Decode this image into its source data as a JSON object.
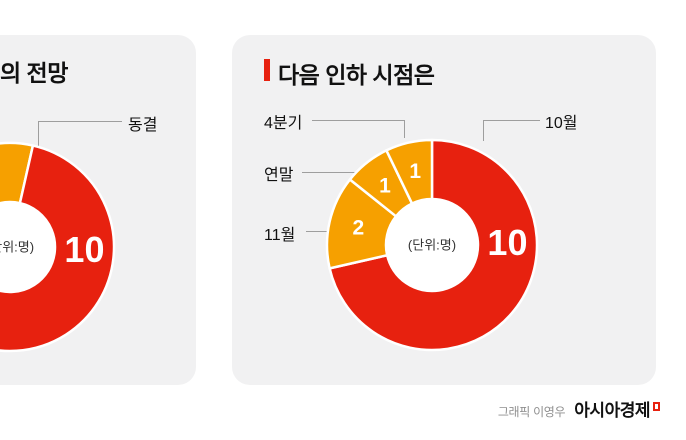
{
  "cards": {
    "left": {
      "title": "의 전망"
    },
    "right": {
      "title": "다음 인하 시점은"
    }
  },
  "footer": {
    "credit": "그래픽 이영우",
    "brand": "아시아경제"
  },
  "colors": {
    "red": "#e7210f",
    "orange": "#f6a000",
    "card_bg": "#f1f1f2",
    "leader_line": "#9e9e9e"
  },
  "chart_data": [
    {
      "id": "left-donut",
      "type": "pie",
      "title_visible": "의 전망",
      "unit_label": "(단위:명)",
      "start_angle": -20,
      "outer_radius": 104,
      "inner_radius": 45,
      "slices": [
        {
          "label": "동결",
          "value": 1,
          "color": "#f6a000",
          "show_value": false
        },
        {
          "label": "",
          "value": 10,
          "color": "#e7210f",
          "show_value": true,
          "label_angle": 92
        }
      ]
    },
    {
      "id": "right-donut",
      "type": "pie",
      "title": "다음 인하 시점은",
      "unit_label": "(단위:명)",
      "start_angle": 0,
      "outer_radius": 105,
      "inner_radius": 46,
      "slices": [
        {
          "label": "10월",
          "value": 10,
          "color": "#e7210f",
          "show_value": true,
          "label_angle": 88
        },
        {
          "label": "11월",
          "value": 2,
          "color": "#f6a000",
          "show_value": true
        },
        {
          "label": "연말",
          "value": 1,
          "color": "#f6a000",
          "show_value": true
        },
        {
          "label": "4분기",
          "value": 1,
          "color": "#f6a000",
          "show_value": true
        }
      ]
    }
  ]
}
